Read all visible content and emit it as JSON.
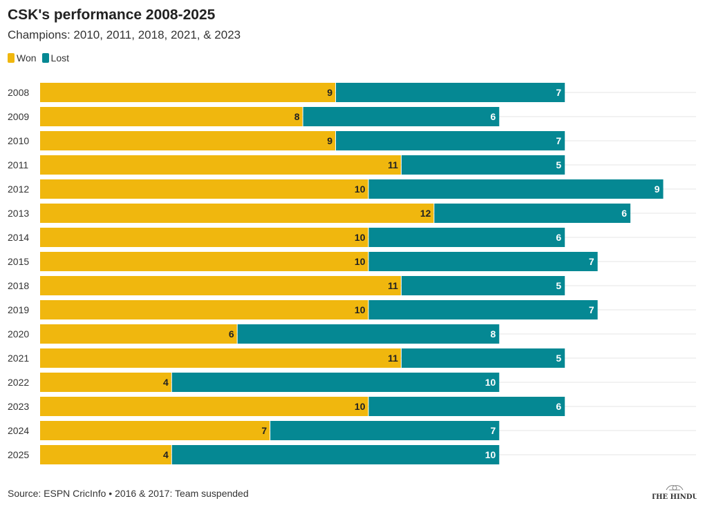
{
  "header": {
    "title": "CSK's performance 2008-2025",
    "subtitle": "Champions: 2010, 2011, 2018, 2021, & 2023"
  },
  "legend": {
    "items": [
      {
        "label": "Won",
        "color": "#F0B70E"
      },
      {
        "label": "Lost",
        "color": "#058893"
      }
    ]
  },
  "footer": {
    "source": "Source: ESPN CricInfo • 2016 & 2017: Team suspended",
    "logo_text": "THE HINDU"
  },
  "chart_data": {
    "type": "bar",
    "orientation": "horizontal",
    "stacked": true,
    "categories": [
      "2008",
      "2009",
      "2010",
      "2011",
      "2012",
      "2013",
      "2014",
      "2015",
      "2018",
      "2019",
      "2020",
      "2021",
      "2022",
      "2023",
      "2024",
      "2025"
    ],
    "series": [
      {
        "name": "Won",
        "color": "#F0B70E",
        "values": [
          9,
          8,
          9,
          11,
          10,
          12,
          10,
          10,
          11,
          10,
          6,
          11,
          4,
          10,
          7,
          4
        ]
      },
      {
        "name": "Lost",
        "color": "#058893",
        "values": [
          7,
          6,
          7,
          5,
          9,
          6,
          6,
          7,
          5,
          7,
          8,
          5,
          10,
          6,
          7,
          10
        ]
      }
    ],
    "xlim": [
      0,
      20
    ],
    "grid": true,
    "legend_position": "top-left"
  }
}
